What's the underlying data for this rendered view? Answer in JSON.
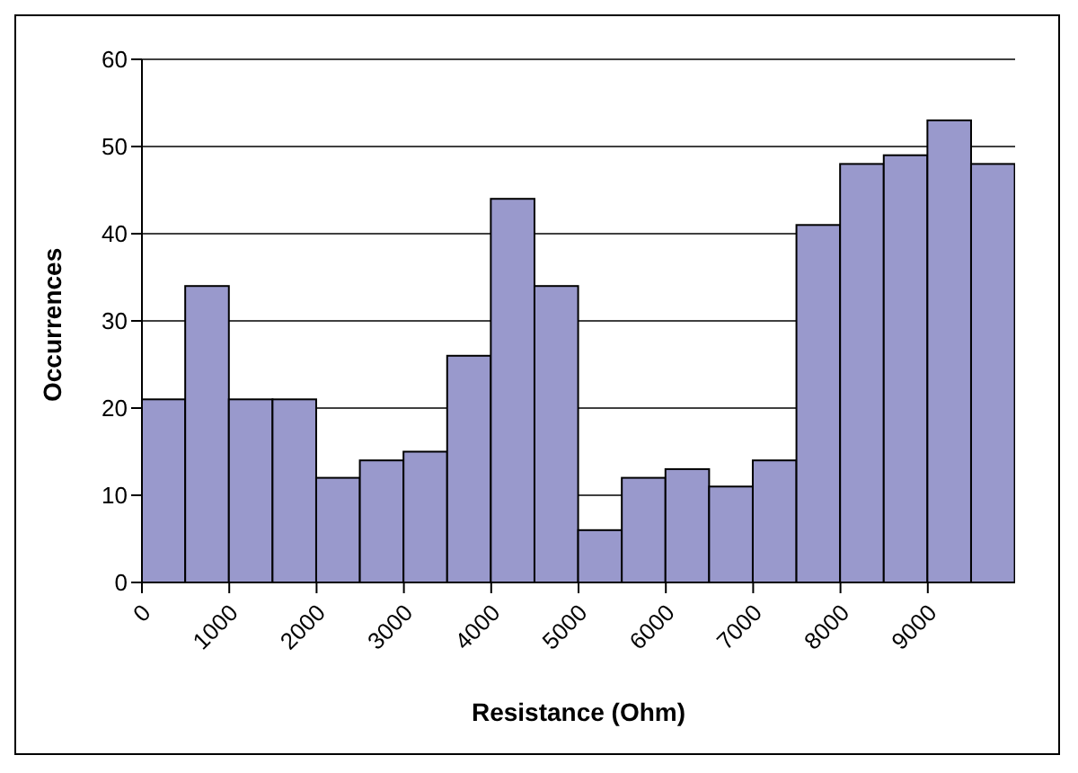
{
  "chart_data": {
    "type": "histogram",
    "xlabel": "Resistance (Ohm)",
    "ylabel": "Occurrences",
    "bins": [
      0,
      500,
      1000,
      1500,
      2000,
      2500,
      3000,
      3500,
      4000,
      4500,
      5000,
      5500,
      6000,
      6500,
      7000,
      7500,
      8000,
      8500,
      9000,
      9500,
      10000
    ],
    "values": [
      21,
      34,
      21,
      21,
      12,
      14,
      15,
      26,
      44,
      34,
      6,
      12,
      13,
      11,
      14,
      41,
      48,
      49,
      53,
      48
    ],
    "color": "#9999cc",
    "xlim": [
      0,
      10000
    ],
    "xticks": [
      0,
      1000,
      2000,
      3000,
      4000,
      5000,
      6000,
      7000,
      8000,
      9000
    ],
    "ylim": [
      0,
      60
    ],
    "yticks": [
      0,
      10,
      20,
      30,
      40,
      50,
      60
    ],
    "grid": "y",
    "legend": false
  }
}
